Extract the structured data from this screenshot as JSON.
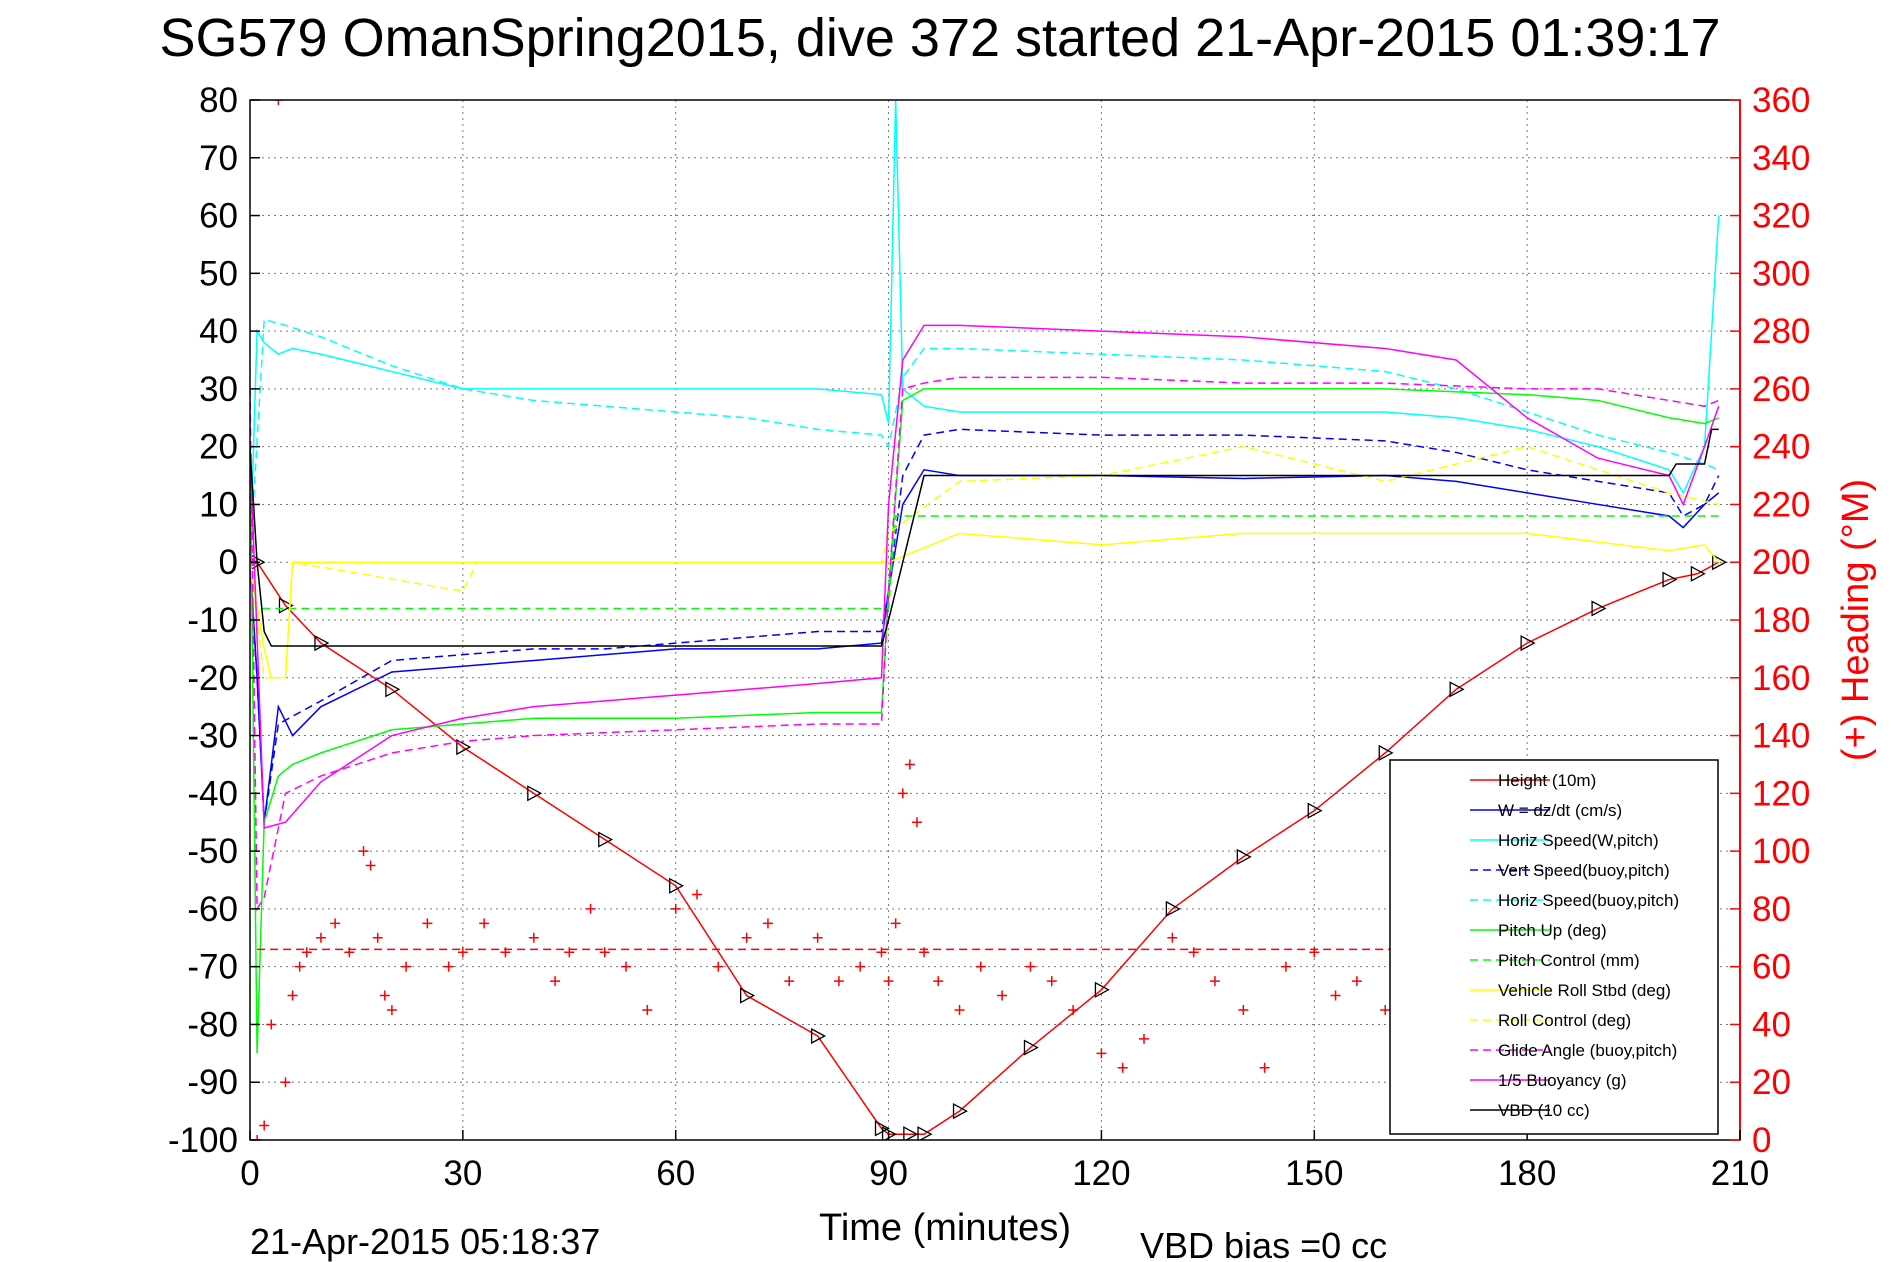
{
  "chart_data": {
    "type": "line",
    "title": "SG579 OmanSpring2015, dive 372 started 21-Apr-2015 01:39:17",
    "xlabel": "Time (minutes)",
    "y2label": "(+) Heading (°M)",
    "footer_left": "21-Apr-2015 05:18:37",
    "footer_right": "VBD bias =0 cc",
    "xlim": [
      0,
      210
    ],
    "ylim": [
      -100,
      80
    ],
    "y2lim": [
      0,
      360
    ],
    "x_ticks": [
      "0",
      "30",
      "60",
      "90",
      "120",
      "150",
      "180",
      "210"
    ],
    "y_ticks": [
      "-100",
      "-90",
      "-80",
      "-70",
      "-60",
      "-50",
      "-40",
      "-30",
      "-20",
      "-10",
      "0",
      "10",
      "20",
      "30",
      "40",
      "50",
      "60",
      "70",
      "80"
    ],
    "y2_ticks": [
      "0",
      "20",
      "40",
      "60",
      "80",
      "100",
      "120",
      "140",
      "160",
      "180",
      "200",
      "220",
      "240",
      "260",
      "280",
      "300",
      "320",
      "340",
      "360"
    ],
    "grid": true,
    "legend_position": "bottom-right",
    "series": [
      {
        "name": "Height (10m)",
        "color": "#ff0000",
        "style": "solid",
        "marker": "triangle",
        "x": [
          0,
          1,
          5,
          10,
          20,
          30,
          40,
          50,
          60,
          70,
          80,
          89,
          90,
          93,
          95,
          100,
          110,
          120,
          130,
          140,
          150,
          160,
          170,
          180,
          190,
          200,
          204,
          207
        ],
        "y": [
          0,
          0,
          -7.5,
          -14,
          -22,
          -32,
          -40,
          -48,
          -56,
          -75,
          -82,
          -98,
          -99,
          -99,
          -99,
          -95,
          -84,
          -74,
          -60,
          -51,
          -43,
          -33,
          -22,
          -14,
          -8,
          -3,
          -2,
          0
        ]
      },
      {
        "name": "W = dz/dt (cm/s)",
        "color": "#0000ff",
        "style": "solid",
        "x": [
          0,
          1,
          2,
          4,
          6,
          10,
          20,
          30,
          40,
          50,
          60,
          70,
          80,
          89,
          90,
          92,
          95,
          100,
          120,
          140,
          160,
          170,
          180,
          190,
          200,
          202,
          205,
          207
        ],
        "y": [
          0,
          -20,
          -45,
          -25,
          -30,
          -25,
          -19,
          -18,
          -17,
          -16,
          -15,
          -15,
          -15,
          -14,
          -5,
          10,
          16,
          15,
          15,
          14.5,
          15,
          14,
          12,
          10,
          8,
          6,
          10,
          12
        ]
      },
      {
        "name": "Horiz Speed(W,pitch)",
        "color": "#00ffff",
        "style": "solid",
        "x": [
          0,
          1,
          2,
          4,
          6,
          10,
          20,
          30,
          40,
          60,
          80,
          89,
          90,
          91,
          92,
          95,
          100,
          120,
          140,
          160,
          170,
          180,
          190,
          200,
          202,
          205,
          207
        ],
        "y": [
          0,
          40,
          38,
          36,
          37,
          36,
          33,
          30,
          30,
          30,
          30,
          29,
          24,
          80,
          30,
          27,
          26,
          26,
          26,
          26,
          25,
          23,
          20,
          16,
          12,
          20,
          60
        ]
      },
      {
        "name": "Vert Speed(buoy,pitch)",
        "color": "#0000ff",
        "style": "dashed",
        "x": [
          0,
          1,
          2,
          4,
          10,
          20,
          30,
          40,
          50,
          60,
          70,
          80,
          89,
          90,
          92,
          95,
          100,
          120,
          140,
          160,
          170,
          180,
          190,
          200,
          202,
          205,
          207
        ],
        "y": [
          0,
          -20,
          -45,
          -28,
          -24,
          -17,
          -16,
          -15,
          -15,
          -14,
          -13,
          -12,
          -12,
          -5,
          15,
          22,
          23,
          22,
          22,
          21,
          19,
          16,
          14,
          12,
          8,
          10,
          15
        ]
      },
      {
        "name": "Horiz Speed(buoy,pitch)",
        "color": "#00ffff",
        "style": "dashed",
        "x": [
          0,
          2,
          5,
          10,
          20,
          30,
          40,
          50,
          60,
          70,
          80,
          89,
          90,
          92,
          95,
          100,
          120,
          140,
          160,
          170,
          180,
          190,
          200,
          205,
          207
        ],
        "y": [
          0,
          42,
          41,
          39,
          34,
          30,
          28,
          27,
          26,
          25,
          23,
          22,
          20,
          32,
          37,
          37,
          36,
          35,
          33,
          30,
          26,
          22,
          19,
          17,
          16
        ]
      },
      {
        "name": "Pitch Up (deg)",
        "color": "#00ff00",
        "style": "solid",
        "x": [
          0,
          1,
          2,
          4,
          6,
          10,
          20,
          30,
          40,
          60,
          80,
          89,
          90,
          92,
          95,
          100,
          120,
          140,
          160,
          180,
          190,
          200,
          205,
          207
        ],
        "y": [
          20,
          -85,
          -45,
          -37,
          -35,
          -33,
          -29,
          -28,
          -27,
          -27,
          -26,
          -26,
          -5,
          28,
          30,
          30,
          30,
          30,
          30,
          29,
          28,
          25,
          24,
          25
        ]
      },
      {
        "name": "Pitch Control (mm)",
        "color": "#00ff00",
        "style": "dashed",
        "x": [
          0,
          1,
          90,
          91,
          207
        ],
        "y": [
          0,
          -8,
          -8,
          8,
          8
        ]
      },
      {
        "name": "Vehicle Roll Stbd (deg)",
        "color": "#ffff00",
        "style": "solid",
        "x": [
          0,
          2,
          3,
          5,
          6,
          10,
          20,
          40,
          60,
          80,
          89,
          90,
          100,
          120,
          140,
          160,
          180,
          200,
          205,
          207
        ],
        "y": [
          0,
          -15,
          -20,
          -20,
          0,
          0,
          0,
          0,
          0,
          0,
          0,
          0,
          5,
          3,
          5,
          5,
          5,
          2,
          3,
          0
        ]
      },
      {
        "name": "Roll Control (deg)",
        "color": "#ffff00",
        "style": "dashed",
        "x": [
          0,
          2,
          3,
          5,
          6,
          30,
          32,
          40,
          89,
          90,
          100,
          120,
          140,
          160,
          180,
          200,
          207
        ],
        "y": [
          0,
          -20,
          -20,
          -20,
          0,
          -5,
          0,
          0,
          0,
          5,
          14,
          15,
          20,
          14,
          20,
          12,
          10
        ]
      },
      {
        "name": "Glide Angle (buoy,pitch)",
        "color": "#ff00ff",
        "style": "dashed",
        "x": [
          0,
          1,
          2,
          5,
          10,
          20,
          30,
          40,
          60,
          80,
          89,
          90,
          92,
          95,
          100,
          120,
          140,
          160,
          180,
          190,
          200,
          205,
          207
        ],
        "y": [
          30,
          -60,
          -58,
          -40,
          -37,
          -33,
          -31,
          -30,
          -29,
          -28,
          -28,
          -5,
          30,
          31,
          32,
          32,
          31,
          31,
          30,
          30,
          28,
          27,
          28
        ]
      },
      {
        "name": "1/5 Buoyancy (g)",
        "color": "#ff00ff",
        "style": "solid",
        "x": [
          0,
          2,
          5,
          10,
          20,
          30,
          40,
          60,
          80,
          89,
          90,
          92,
          95,
          100,
          120,
          140,
          160,
          170,
          180,
          190,
          200,
          202,
          205,
          207
        ],
        "y": [
          20,
          -46,
          -45,
          -38,
          -30,
          -27,
          -25,
          -23,
          -21,
          -20,
          10,
          35,
          41,
          41,
          40,
          39,
          37,
          35,
          25,
          18,
          15,
          10,
          20,
          27
        ]
      },
      {
        "name": "VBD (10 cc)",
        "color": "#000000",
        "style": "solid",
        "x": [
          0,
          1,
          2,
          3,
          89,
          90,
          93,
          95,
          200,
          201,
          205,
          206,
          207
        ],
        "y": [
          20,
          0,
          -12,
          -14.5,
          -14.5,
          -10,
          5,
          15,
          15,
          17,
          17,
          23,
          23
        ]
      },
      {
        "name": "",
        "color": "#ff0000",
        "style": "dashed",
        "axis": "right",
        "x": [
          1,
          207
        ],
        "y": [
          66,
          66
        ]
      },
      {
        "name": "",
        "color": "#ff0000",
        "style": "markers",
        "marker": "+",
        "axis": "right",
        "x": [
          1,
          2,
          3,
          4,
          5,
          6,
          7,
          8,
          10,
          12,
          14,
          16,
          17,
          18,
          19,
          20,
          22,
          25,
          28,
          30,
          33,
          36,
          40,
          43,
          45,
          48,
          50,
          53,
          56,
          60,
          63,
          66,
          70,
          73,
          76,
          80,
          83,
          86,
          89,
          90,
          91,
          92,
          93,
          94,
          95,
          97,
          100,
          103,
          106,
          110,
          113,
          116,
          120,
          123,
          126,
          130,
          133,
          136,
          140,
          143,
          146,
          150,
          153,
          156,
          160,
          163,
          166,
          170,
          174,
          178,
          182,
          186,
          190,
          194,
          198,
          202,
          204,
          206
        ],
        "y": [
          0,
          5,
          40,
          360,
          20,
          50,
          60,
          65,
          70,
          75,
          65,
          100,
          95,
          70,
          50,
          45,
          60,
          75,
          60,
          65,
          75,
          65,
          70,
          55,
          65,
          80,
          65,
          60,
          45,
          80,
          85,
          60,
          70,
          75,
          55,
          70,
          55,
          60,
          65,
          55,
          75,
          120,
          130,
          110,
          65,
          55,
          45,
          60,
          50,
          60,
          55,
          45,
          30,
          25,
          35,
          70,
          65,
          55,
          45,
          25,
          60,
          65,
          50,
          55,
          45,
          60,
          55,
          50,
          65,
          55,
          60,
          50,
          45,
          40,
          30,
          30,
          30,
          35
        ]
      }
    ]
  }
}
